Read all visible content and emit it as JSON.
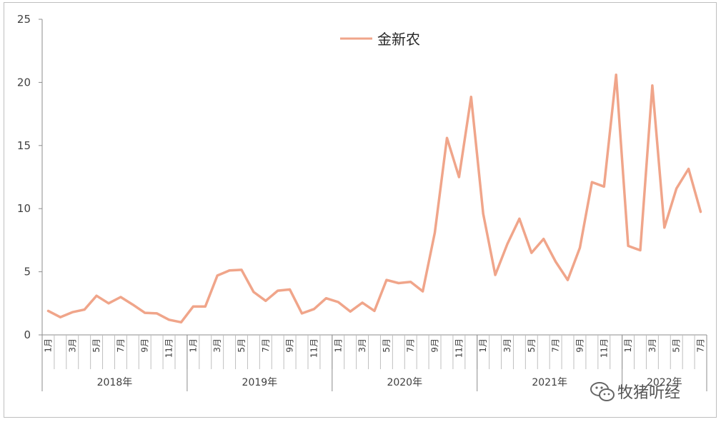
{
  "watermark": "牧猪听经",
  "chart_data": {
    "type": "line",
    "title": "",
    "xlabel": "",
    "ylabel": "",
    "ylim": [
      0,
      25
    ],
    "yticks": [
      0,
      5,
      10,
      15,
      20,
      25
    ],
    "grid": false,
    "legend_position": "top-center",
    "color": "#f0a58a",
    "years": [
      {
        "label": "2018年",
        "months": 12
      },
      {
        "label": "2019年",
        "months": 12
      },
      {
        "label": "2020年",
        "months": 12
      },
      {
        "label": "2021年",
        "months": 12
      },
      {
        "label": "2022年",
        "months": 7
      }
    ],
    "month_labels": [
      "1月",
      "",
      "3月",
      "",
      "5月",
      "",
      "7月",
      "",
      "9月",
      "",
      "11月",
      "",
      "1月",
      "",
      "3月",
      "",
      "5月",
      "",
      "7月",
      "",
      "9月",
      "",
      "11月",
      "",
      "1月",
      "",
      "3月",
      "",
      "5月",
      "",
      "7月",
      "",
      "9月",
      "",
      "11月",
      "",
      "1月",
      "",
      "3月",
      "",
      "5月",
      "",
      "7月",
      "",
      "9月",
      "",
      "11月",
      "",
      "1月",
      "",
      "3月",
      "",
      "5月",
      "",
      "7月"
    ],
    "series": [
      {
        "name": "金新农",
        "values": [
          1.9,
          1.4,
          1.8,
          2.0,
          3.1,
          2.5,
          3.0,
          2.4,
          1.75,
          1.7,
          1.2,
          1.0,
          2.25,
          2.25,
          4.7,
          5.1,
          5.15,
          3.4,
          2.7,
          3.5,
          3.6,
          1.7,
          2.05,
          2.9,
          2.6,
          1.85,
          2.55,
          1.9,
          4.35,
          4.1,
          4.2,
          3.45,
          8.1,
          15.6,
          12.5,
          18.85,
          9.6,
          4.75,
          7.2,
          9.2,
          6.5,
          7.6,
          5.8,
          4.35,
          6.9,
          12.1,
          11.75,
          20.6,
          7.05,
          6.7,
          19.75,
          8.5,
          11.6,
          13.15,
          9.75
        ]
      }
    ]
  }
}
